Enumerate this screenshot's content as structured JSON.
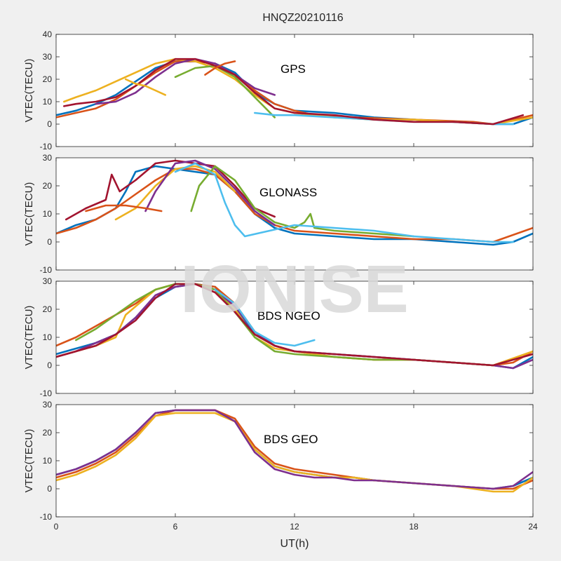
{
  "figure": {
    "title": "HNQZ20210116",
    "watermark": "IONISE",
    "xlabel": "UT(h)",
    "xticks": [
      "0",
      "6",
      "12",
      "18",
      "24"
    ]
  },
  "chart_data": [
    {
      "type": "line",
      "panel_label": "GPS",
      "ylabel": "VTEC(TECU)",
      "xlim": [
        0,
        24
      ],
      "ylim": [
        -10,
        40
      ],
      "yticks": [
        -10,
        0,
        10,
        20,
        30,
        40
      ],
      "series": [
        {
          "color": "#0072BD",
          "x": [
            0,
            1,
            2,
            3,
            4,
            5,
            6,
            7,
            8,
            9,
            10,
            11,
            12,
            14,
            16,
            18,
            20,
            22,
            23,
            24
          ],
          "y": [
            4,
            6,
            9,
            13,
            19,
            25,
            28,
            28,
            27,
            23,
            14,
            9,
            6,
            5,
            3,
            2,
            1,
            0,
            0,
            3
          ]
        },
        {
          "color": "#D95319",
          "x": [
            0,
            2,
            3,
            4,
            5,
            6,
            7,
            8,
            9,
            10,
            11,
            12,
            13,
            15,
            18,
            21,
            22,
            23,
            24
          ],
          "y": [
            3,
            7,
            11,
            17,
            23,
            28,
            28,
            27,
            22,
            15,
            9,
            6,
            4,
            3,
            2,
            1,
            0,
            2,
            4
          ]
        },
        {
          "color": "#EDB120",
          "x": [
            0.4,
            1,
            2,
            3,
            4,
            5,
            6,
            7,
            8,
            9,
            10,
            11,
            12,
            14,
            16,
            18,
            20,
            22,
            24
          ],
          "y": [
            10,
            12,
            15,
            19,
            23,
            27,
            29,
            28,
            25,
            20,
            13,
            7,
            5,
            3,
            2,
            2,
            1,
            0,
            3
          ]
        },
        {
          "color": "#7E2F8E",
          "x": [
            2,
            3,
            4,
            5,
            6,
            7,
            8,
            9,
            10,
            11
          ],
          "y": [
            9,
            10,
            14,
            21,
            27,
            29,
            27,
            22,
            16,
            13
          ]
        },
        {
          "color": "#77AC30",
          "x": [
            6,
            7,
            8,
            9,
            10,
            11
          ],
          "y": [
            21,
            25,
            26,
            21,
            12,
            3
          ]
        },
        {
          "color": "#4DBEEE",
          "x": [
            10,
            11,
            12,
            14,
            16,
            18,
            20,
            22,
            23
          ],
          "y": [
            5,
            4,
            4,
            3,
            2,
            1,
            1,
            0,
            0
          ]
        },
        {
          "color": "#A2142F",
          "x": [
            0.4,
            1,
            2,
            3,
            4,
            5,
            6,
            7,
            8,
            9,
            10,
            11,
            12,
            14,
            16,
            18,
            20,
            22,
            23.5
          ],
          "y": [
            8,
            9,
            10,
            12,
            17,
            24,
            29,
            29,
            26,
            22,
            14,
            7,
            5,
            4,
            2,
            1,
            1,
            0,
            4
          ]
        },
        {
          "color": "#EDB120",
          "x": [
            3.5,
            4,
            4.5,
            5,
            5.5
          ],
          "y": [
            20,
            18,
            17,
            15,
            13
          ]
        },
        {
          "color": "#D95319",
          "x": [
            7.5,
            8,
            8.5,
            9
          ],
          "y": [
            22,
            25,
            27,
            28
          ]
        }
      ]
    },
    {
      "type": "line",
      "panel_label": "GLONASS",
      "ylabel": "VTEC(TECU)",
      "xlim": [
        0,
        24
      ],
      "ylim": [
        -10,
        30
      ],
      "yticks": [
        -10,
        0,
        10,
        20,
        30
      ],
      "series": [
        {
          "color": "#0072BD",
          "x": [
            0,
            1,
            2,
            3,
            3.5,
            4,
            5,
            6,
            7,
            8,
            9,
            10,
            11,
            12,
            14,
            16,
            18,
            20,
            22,
            23,
            24
          ],
          "y": [
            3,
            6,
            8,
            12,
            18,
            25,
            27,
            26,
            25,
            24,
            18,
            10,
            5,
            3,
            2,
            1,
            1,
            0,
            -1,
            0,
            3
          ]
        },
        {
          "color": "#D95319",
          "x": [
            0,
            1,
            2,
            3,
            4,
            5,
            6,
            7,
            8,
            9,
            10,
            11,
            12,
            14,
            16,
            18,
            20,
            22,
            24
          ],
          "y": [
            3,
            5,
            8,
            12,
            17,
            22,
            26,
            26,
            24,
            18,
            10,
            6,
            4,
            3,
            2,
            1,
            1,
            0,
            5
          ]
        },
        {
          "color": "#A2142F",
          "x": [
            0.5,
            1.5,
            2.5,
            2.8,
            3.2,
            4,
            5,
            6,
            7,
            8,
            9,
            10,
            11
          ],
          "y": [
            8,
            12,
            15,
            24,
            18,
            22,
            28,
            29,
            28,
            27,
            20,
            12,
            9
          ]
        },
        {
          "color": "#EDB120",
          "x": [
            3,
            4,
            5,
            6,
            7,
            8,
            9
          ],
          "y": [
            8,
            12,
            20,
            26,
            27,
            25,
            18
          ]
        },
        {
          "color": "#7E2F8E",
          "x": [
            4.5,
            5,
            6,
            7,
            8,
            9,
            10,
            11
          ],
          "y": [
            11,
            18,
            28,
            29,
            26,
            19,
            11,
            6
          ]
        },
        {
          "color": "#77AC30",
          "x": [
            6.8,
            7.2,
            8,
            9,
            10,
            11,
            12,
            12.5,
            12.8,
            13,
            14,
            16,
            18
          ],
          "y": [
            11,
            20,
            27,
            22,
            12,
            7,
            5,
            7,
            10,
            5,
            4,
            3,
            2
          ]
        },
        {
          "color": "#4DBEEE",
          "x": [
            6,
            7,
            8,
            8.5,
            9,
            9.5,
            12,
            14,
            16,
            18,
            20,
            22,
            23
          ],
          "y": [
            25,
            28,
            24,
            14,
            6,
            2,
            6,
            5,
            4,
            2,
            1,
            0,
            0
          ]
        },
        {
          "color": "#D95319",
          "x": [
            1.5,
            2.5,
            3.5,
            4.5,
            5.3
          ],
          "y": [
            11,
            13,
            13,
            12,
            11
          ]
        }
      ]
    },
    {
      "type": "line",
      "panel_label": "BDS NGEO",
      "ylabel": "VTEC(TECU)",
      "xlim": [
        0,
        24
      ],
      "ylim": [
        -10,
        30
      ],
      "yticks": [
        -10,
        0,
        10,
        20,
        30
      ],
      "series": [
        {
          "color": "#0072BD",
          "x": [
            0,
            1,
            2,
            3,
            4,
            5,
            6,
            7,
            8,
            9,
            10,
            11,
            12,
            14,
            16,
            18,
            20,
            22,
            23,
            24
          ],
          "y": [
            4,
            6,
            8,
            11,
            17,
            24,
            28,
            29,
            28,
            20,
            11,
            7,
            5,
            4,
            3,
            2,
            1,
            0,
            -1,
            3
          ]
        },
        {
          "color": "#D95319",
          "x": [
            0,
            1,
            2,
            3,
            4,
            5,
            6,
            7,
            8,
            9,
            10,
            11,
            12,
            14,
            16,
            18,
            20,
            22,
            23,
            24
          ],
          "y": [
            7,
            10,
            14,
            18,
            22,
            27,
            29,
            29,
            28,
            22,
            12,
            7,
            5,
            3,
            2,
            2,
            1,
            0,
            1,
            5
          ]
        },
        {
          "color": "#EDB120",
          "x": [
            0,
            1,
            2,
            3,
            3.5,
            4,
            5,
            6,
            7,
            8,
            9,
            10,
            11,
            12,
            14,
            16,
            18,
            20,
            22,
            24
          ],
          "y": [
            3,
            5,
            7,
            10,
            18,
            21,
            27,
            29,
            29,
            27,
            20,
            10,
            6,
            5,
            3,
            2,
            2,
            1,
            0,
            5
          ]
        },
        {
          "color": "#7E2F8E",
          "x": [
            0,
            1,
            2,
            3,
            4,
            5,
            6,
            7,
            8,
            9,
            10,
            11,
            12,
            14,
            16,
            18,
            20,
            22,
            23,
            24
          ],
          "y": [
            3,
            5,
            8,
            11,
            17,
            25,
            28,
            29,
            27,
            21,
            12,
            7,
            5,
            4,
            3,
            2,
            1,
            0,
            -1,
            2
          ]
        },
        {
          "color": "#77AC30",
          "x": [
            1,
            2,
            3,
            4,
            5,
            6,
            7,
            8,
            9,
            10,
            11,
            12,
            14,
            16,
            18,
            20,
            22
          ],
          "y": [
            9,
            13,
            18,
            23,
            27,
            29,
            29,
            27,
            19,
            10,
            5,
            4,
            3,
            2,
            2,
            1,
            0
          ]
        },
        {
          "color": "#4DBEEE",
          "x": [
            8,
            9,
            10,
            11,
            12,
            13
          ],
          "y": [
            27,
            22,
            12,
            8,
            7,
            9
          ]
        },
        {
          "color": "#A2142F",
          "x": [
            0,
            1,
            2,
            3,
            4,
            5,
            6,
            7,
            8,
            9,
            10,
            11,
            12,
            14,
            16,
            18,
            20,
            22,
            24
          ],
          "y": [
            3,
            5,
            7,
            11,
            16,
            24,
            29,
            29,
            26,
            19,
            11,
            7,
            5,
            4,
            3,
            2,
            1,
            0,
            4
          ]
        }
      ]
    },
    {
      "type": "line",
      "panel_label": "BDS GEO",
      "ylabel": "VTEC(TECU)",
      "xlim": [
        0,
        24
      ],
      "ylim": [
        -10,
        30
      ],
      "yticks": [
        -10,
        0,
        10,
        20,
        30
      ],
      "series": [
        {
          "color": "#0072BD",
          "x": [
            0,
            1,
            2,
            3,
            4,
            5,
            6,
            7,
            8,
            9,
            10,
            11,
            12,
            13,
            14,
            15,
            16,
            18,
            20,
            22,
            23,
            24
          ],
          "y": [
            5,
            7,
            10,
            14,
            20,
            27,
            28,
            28,
            28,
            24,
            14,
            8,
            6,
            5,
            4,
            4,
            3,
            2,
            1,
            0,
            1,
            4
          ]
        },
        {
          "color": "#D95319",
          "x": [
            0,
            1,
            2,
            3,
            4,
            5,
            6,
            7,
            8,
            9,
            10,
            11,
            12,
            13,
            14,
            15,
            16,
            18,
            20,
            22,
            23,
            24
          ],
          "y": [
            4,
            6,
            9,
            13,
            19,
            26,
            28,
            28,
            28,
            25,
            15,
            9,
            7,
            6,
            5,
            4,
            3,
            2,
            1,
            0,
            0,
            3
          ]
        },
        {
          "color": "#EDB120",
          "x": [
            0,
            1,
            2,
            3,
            4,
            5,
            6,
            7,
            8,
            9,
            10,
            11,
            12,
            13,
            14,
            15,
            16,
            18,
            20,
            22,
            23,
            24
          ],
          "y": [
            3,
            5,
            8,
            12,
            18,
            26,
            27,
            27,
            27,
            24,
            14,
            8,
            6,
            5,
            4,
            4,
            3,
            2,
            1,
            -1,
            -1,
            4
          ]
        },
        {
          "color": "#7E2F8E",
          "x": [
            0,
            1,
            2,
            3,
            4,
            5,
            6,
            7,
            8,
            9,
            10,
            11,
            12,
            13,
            14,
            15,
            16,
            18,
            20,
            22,
            23,
            24
          ],
          "y": [
            5,
            7,
            10,
            14,
            20,
            27,
            28,
            28,
            28,
            24,
            13,
            7,
            5,
            4,
            4,
            3,
            3,
            2,
            1,
            0,
            1,
            6
          ]
        }
      ]
    }
  ]
}
